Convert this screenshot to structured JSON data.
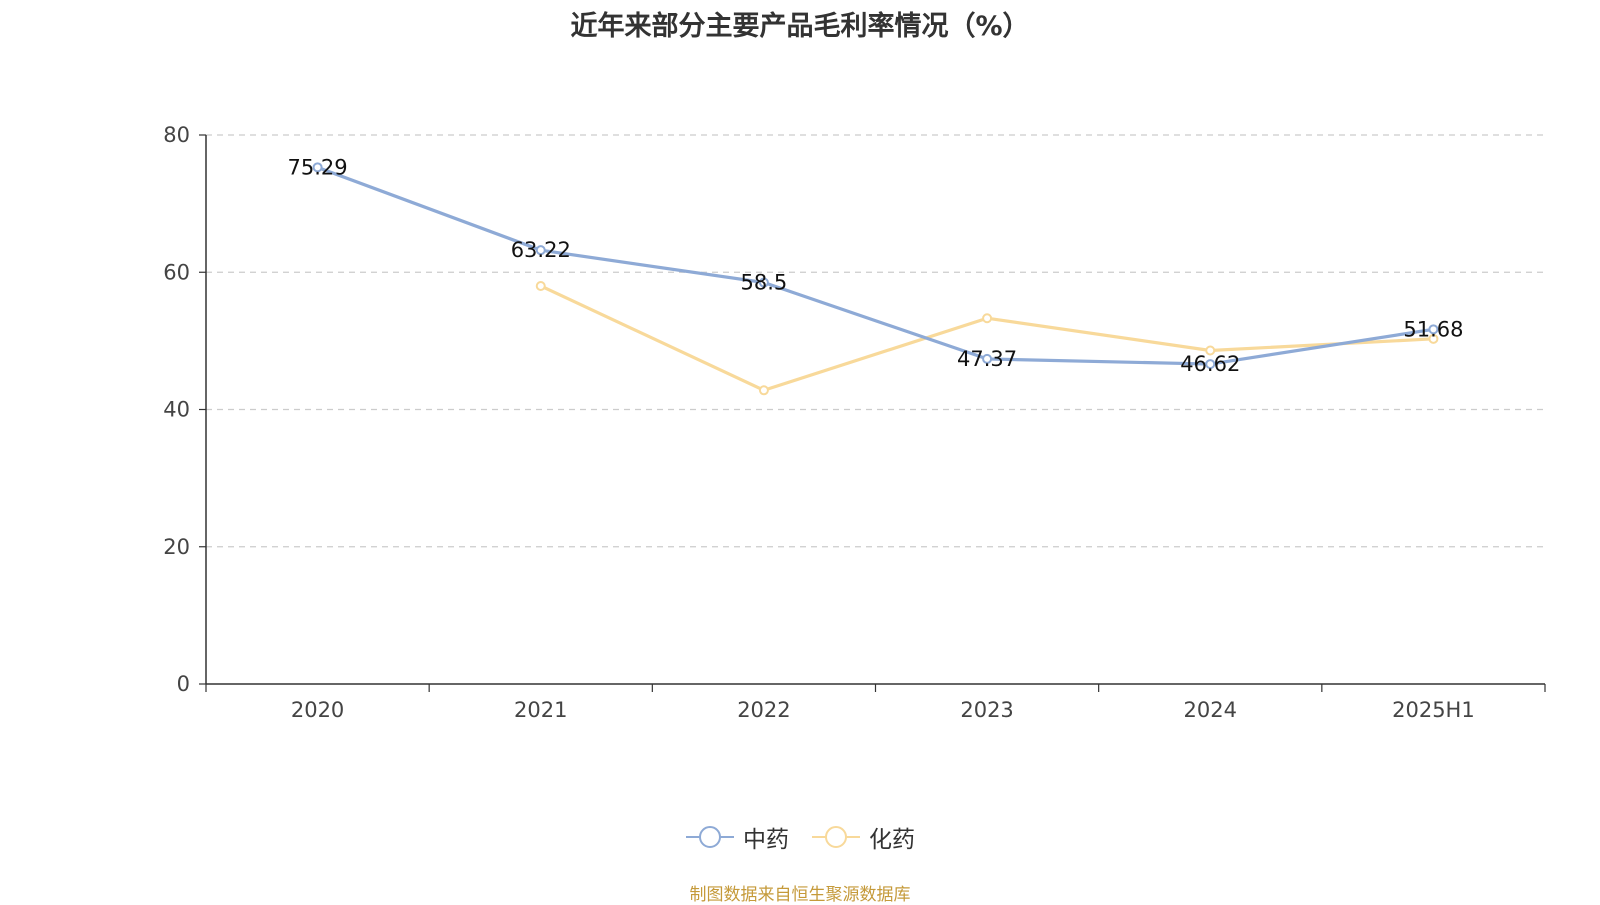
{
  "chart_data": {
    "type": "line",
    "title": "近年来部分主要产品毛利率情况（%）",
    "categories": [
      "2020",
      "2021",
      "2022",
      "2023",
      "2024",
      "2025H1"
    ],
    "y_ticks": [
      0,
      20,
      40,
      60,
      80
    ],
    "ylim": [
      0,
      80
    ],
    "grid": true,
    "legend_position": "bottom",
    "series": [
      {
        "name": "中药",
        "color": "#8eaad6",
        "values": [
          75.29,
          63.22,
          58.5,
          47.37,
          46.62,
          51.68
        ],
        "labels": [
          "75.29",
          "63.22",
          "58.5",
          "47.37",
          "46.62",
          "51.68"
        ],
        "show_labels": true
      },
      {
        "name": "化药",
        "color": "#f8d99a",
        "values": [
          null,
          58.0,
          42.8,
          53.3,
          48.6,
          50.3
        ],
        "show_labels": false
      }
    ]
  },
  "source_note": "制图数据来自恒生聚源数据库"
}
